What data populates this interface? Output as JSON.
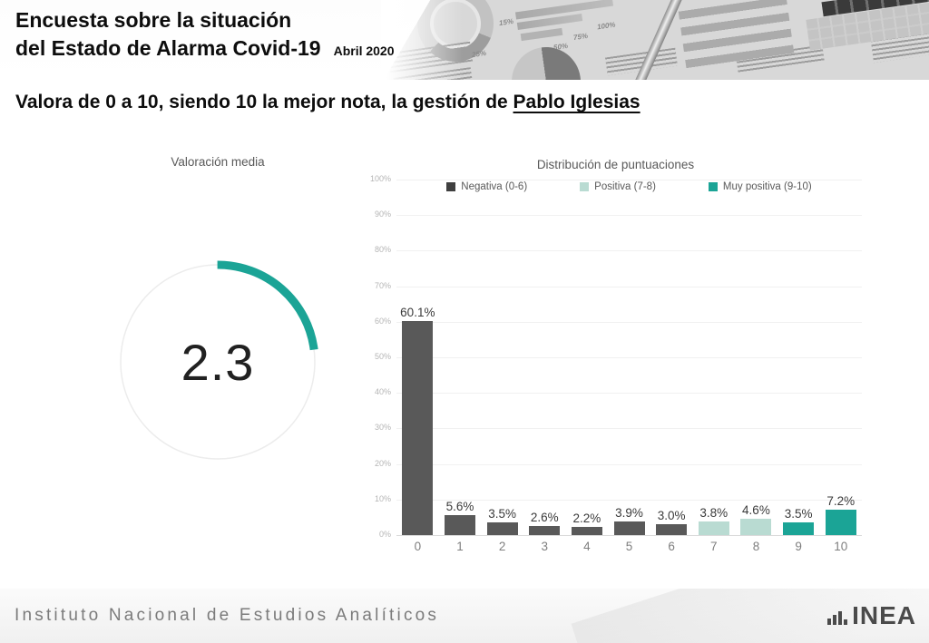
{
  "header": {
    "title_line1": "Encuesta sobre la situación",
    "title_line2": "del Estado de Alarma Covid-19",
    "date": "Abril 2020",
    "photo_labels": [
      "50%",
      "15%",
      "25%",
      "75%",
      "100%",
      "50%"
    ]
  },
  "question": {
    "prefix": "Valora de 0 a 10, siendo 10 la mejor nota, la gestión de ",
    "subject": "Pablo Iglesias"
  },
  "gauge": {
    "title": "Valoración media",
    "value": "2.3",
    "max": 10,
    "percent": 23,
    "arc_color": "#1ba496",
    "ring_color": "#ececec"
  },
  "chart_data": {
    "type": "bar",
    "title": "Distribución de puntuaciones",
    "categories": [
      "0",
      "1",
      "2",
      "3",
      "4",
      "5",
      "6",
      "7",
      "8",
      "9",
      "10"
    ],
    "values": [
      60.1,
      5.6,
      3.5,
      2.6,
      2.2,
      3.9,
      3.0,
      3.8,
      4.6,
      3.5,
      7.2
    ],
    "value_labels": [
      "60.1%",
      "5.6%",
      "3.5%",
      "2.6%",
      "2.2%",
      "3.9%",
      "3.0%",
      "3.8%",
      "4.6%",
      "3.5%",
      "7.2%"
    ],
    "bar_colors": [
      "#595959",
      "#595959",
      "#595959",
      "#595959",
      "#595959",
      "#595959",
      "#595959",
      "#b9dbd2",
      "#b9dbd2",
      "#1ba496",
      "#1ba496"
    ],
    "ylim": [
      0,
      100
    ],
    "y_ticks": [
      "100%",
      "90%",
      "80%",
      "70%",
      "60%",
      "50%",
      "40%",
      "30%",
      "20%",
      "10%",
      "0%"
    ],
    "grid": true,
    "legend_position": "top",
    "legend": [
      {
        "label": "Negativa (0-6)",
        "color": "#3f3f3f"
      },
      {
        "label": "Positiva (7-8)",
        "color": "#b9dbd2"
      },
      {
        "label": "Muy positiva (9-10)",
        "color": "#1ba496"
      }
    ]
  },
  "footer": {
    "organization": "Instituto Nacional de Estudios Analíticos",
    "logo_text": "INEA"
  }
}
